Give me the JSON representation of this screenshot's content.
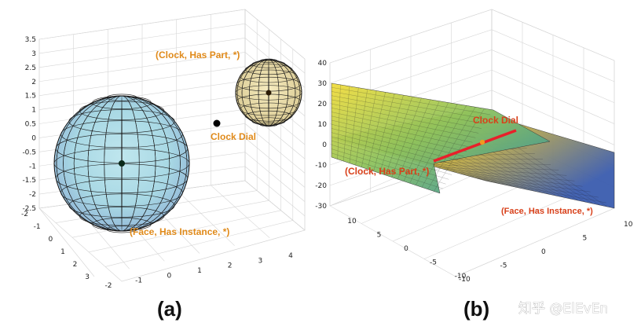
{
  "chart_data": [
    {
      "type": "scatter",
      "subtype": "3d-sphere-embedding",
      "panel_label": "(a)",
      "xlim": [
        -2,
        4
      ],
      "ylim": [
        -2,
        3
      ],
      "zlim": [
        -2.5,
        3.5
      ],
      "x_ticks": [
        "-2",
        "-1",
        "0",
        "1",
        "2",
        "3",
        "4"
      ],
      "y_ticks": [
        "-2",
        "-1",
        "0",
        "1",
        "2",
        "3"
      ],
      "z_ticks": [
        "3.5",
        "3",
        "2.5",
        "2",
        "1.5",
        "1",
        "0.5",
        "0",
        "-0.5",
        "-1",
        "-1.5",
        "-2",
        "-2.5"
      ],
      "grid": true,
      "objects": [
        {
          "kind": "sphere",
          "label": "(Face, Has Instance, *)",
          "color": "#bfe6ee"
        },
        {
          "kind": "sphere",
          "label": "(Clock, Has Part, *)",
          "color": "#efe3b0"
        },
        {
          "kind": "point",
          "label": "Clock Dial"
        }
      ],
      "annotation_color": "#e08a1a"
    },
    {
      "type": "surface",
      "subtype": "3d-plane-embedding",
      "panel_label": "(b)",
      "xlim": [
        -10,
        10
      ],
      "ylim": [
        -10,
        10
      ],
      "zlim": [
        -30,
        40
      ],
      "x_ticks": [
        "-10",
        "-5",
        "0",
        "5",
        "10"
      ],
      "y_ticks": [
        "-10",
        "-5",
        "0",
        "5",
        "10"
      ],
      "z_ticks": [
        "40",
        "30",
        "20",
        "10",
        "0",
        "-10",
        "-20",
        "-30"
      ],
      "grid": true,
      "objects": [
        {
          "kind": "plane",
          "label": "(Face, Has Instance, *)"
        },
        {
          "kind": "plane",
          "label": "(Clock, Has Part, *)"
        },
        {
          "kind": "point",
          "label": "Clock Dial"
        }
      ],
      "annotation_color": "#d8401a",
      "intersection_line_color": "#e8202a"
    }
  ],
  "watermark": "知乎 @ElEvEn"
}
